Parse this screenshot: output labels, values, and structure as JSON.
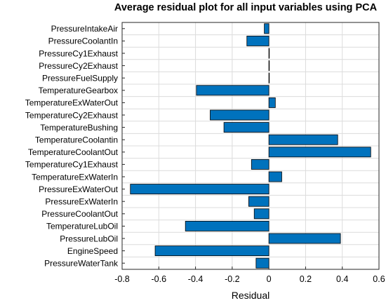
{
  "chart_data": {
    "type": "bar",
    "orientation": "horizontal",
    "title": "Average residual plot for all input variables using PCA",
    "xlabel": "Residual",
    "ylabel": "",
    "xlim": [
      -0.8,
      0.6
    ],
    "xticks": [
      -0.8,
      -0.6,
      -0.4,
      -0.2,
      0,
      0.2,
      0.4,
      0.6
    ],
    "xtick_labels": [
      "-0.8",
      "-0.6",
      "-0.4",
      "-0.2",
      "0",
      "0.2",
      "0.4",
      "0.6"
    ],
    "grid": true,
    "bar_color": "#0072BD",
    "categories": [
      "PressureIntakeAir",
      "PressureCoolantIn",
      "PressureCy1Exhaust",
      "PressureCy2Exhaust",
      "PressureFuelSupply",
      "TemperatureGearbox",
      "TemperatureExWaterOut",
      "TemperatureCy2Exhaust",
      "TemperatureBushing",
      "TemperatureCoolantin",
      "TemperatureCoolantOut",
      "TemperatureCy1Exhaust",
      "TemperatureExWaterIn",
      "PressureExWaterOut",
      "PressureExWaterIn",
      "PressureCoolantOut",
      "TemperatureLubOil",
      "PressureLubOil",
      "EngineSpeed",
      "PressureWaterTank"
    ],
    "values": [
      -0.025,
      -0.12,
      0.0,
      0.0,
      0.0,
      -0.395,
      0.035,
      -0.32,
      -0.245,
      0.375,
      0.555,
      -0.095,
      0.07,
      -0.755,
      -0.11,
      -0.08,
      -0.455,
      0.39,
      -0.62,
      -0.07
    ]
  }
}
